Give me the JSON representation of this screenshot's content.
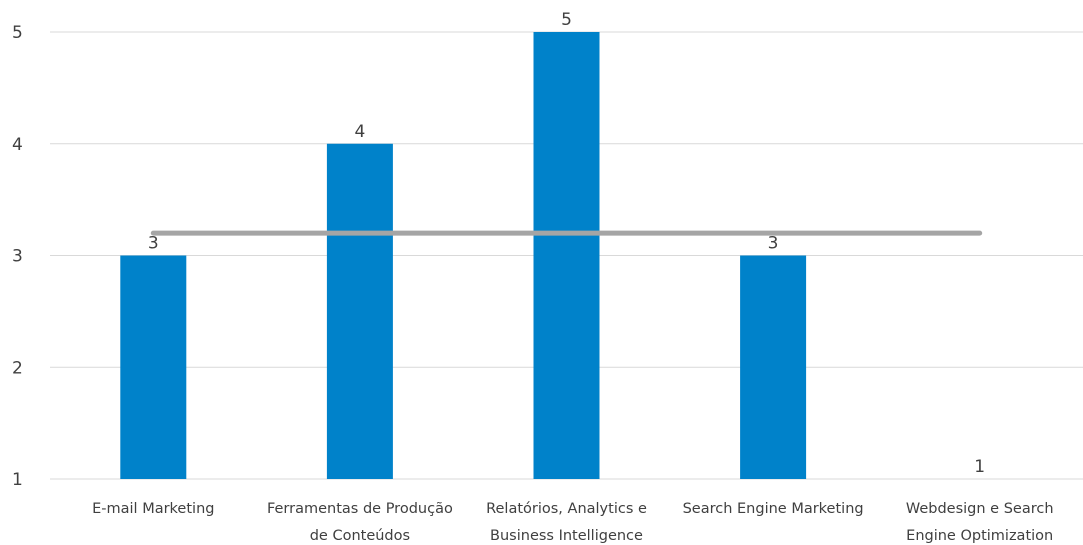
{
  "chart_data": {
    "type": "bar",
    "categories": [
      [
        "E-mail Marketing"
      ],
      [
        "Ferramentas de Produção",
        "de Conteúdos"
      ],
      [
        "Relatórios, Analytics e",
        "Business Intelligence"
      ],
      [
        "Search Engine Marketing"
      ],
      [
        "Webdesign e Search",
        "Engine Optimization"
      ]
    ],
    "series": [
      {
        "type": "bar",
        "values": [
          3,
          4,
          5,
          3,
          1
        ],
        "color": "#0082CA"
      },
      {
        "type": "line",
        "values": [
          3.2,
          3.2,
          3.2,
          3.2,
          3.2
        ],
        "color": "#A5A5A5"
      }
    ],
    "data_labels": [
      "3",
      "4",
      "5",
      "3",
      "1"
    ],
    "yticks": [
      1,
      2,
      3,
      4,
      5
    ],
    "ylim": [
      1,
      5
    ],
    "grid": true,
    "title": "",
    "xlabel": "",
    "ylabel": ""
  }
}
